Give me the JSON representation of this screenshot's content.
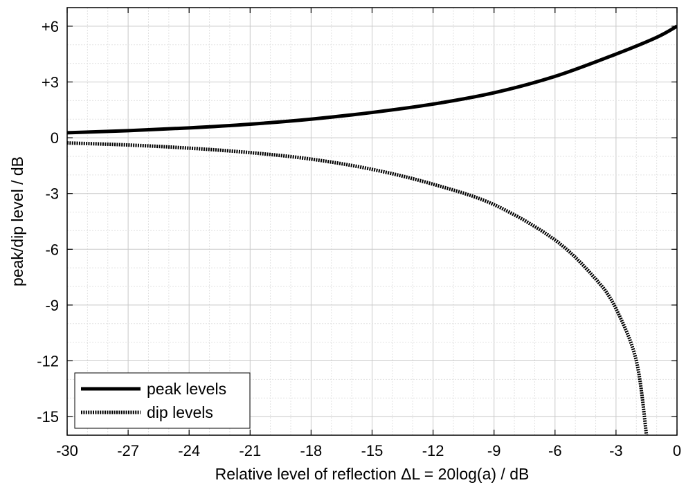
{
  "chart_data": {
    "type": "line",
    "title": "",
    "xlabel": "Relative level of reflection ΔL = 20log(a) / dB",
    "ylabel": "peak/dip level / dB",
    "xlim": [
      -30,
      0
    ],
    "ylim": [
      -16,
      7
    ],
    "xticks": [
      -30,
      -27,
      -24,
      -21,
      -18,
      -15,
      -12,
      -9,
      -6,
      -3,
      0
    ],
    "xtick_labels": [
      "-30",
      "-27",
      "-24",
      "-21",
      "-18",
      "-15",
      "-12",
      "-9",
      "-6",
      "-3",
      "0"
    ],
    "yticks": [
      6,
      3,
      0,
      -3,
      -6,
      -9,
      -12,
      -15
    ],
    "ytick_labels": [
      "+6",
      "+3",
      "0",
      "-3",
      "-6",
      "-9",
      "-12",
      "-15"
    ],
    "minor_grid_step_x": 1,
    "minor_grid_step_y": 1,
    "grid": true,
    "legend_position": "bottom-left",
    "series": [
      {
        "name": "peak levels",
        "style": "solid",
        "color": "#000000",
        "x": [
          -30,
          -27,
          -24,
          -21,
          -18,
          -15,
          -12,
          -9,
          -6,
          -3,
          -1,
          0
        ],
        "y": [
          0.27,
          0.38,
          0.53,
          0.73,
          1.0,
          1.36,
          1.81,
          2.42,
          3.3,
          4.5,
          5.4,
          6.0
        ]
      },
      {
        "name": "dip levels",
        "style": "dotted",
        "color": "#000000",
        "x": [
          -30,
          -27,
          -24,
          -21,
          -18,
          -15,
          -12,
          -9,
          -6,
          -4,
          -3,
          -2,
          -1.5
        ],
        "y": [
          -0.28,
          -0.39,
          -0.56,
          -0.8,
          -1.15,
          -1.7,
          -2.5,
          -3.6,
          -5.5,
          -7.6,
          -9.2,
          -12.0,
          -16.0
        ]
      }
    ]
  }
}
